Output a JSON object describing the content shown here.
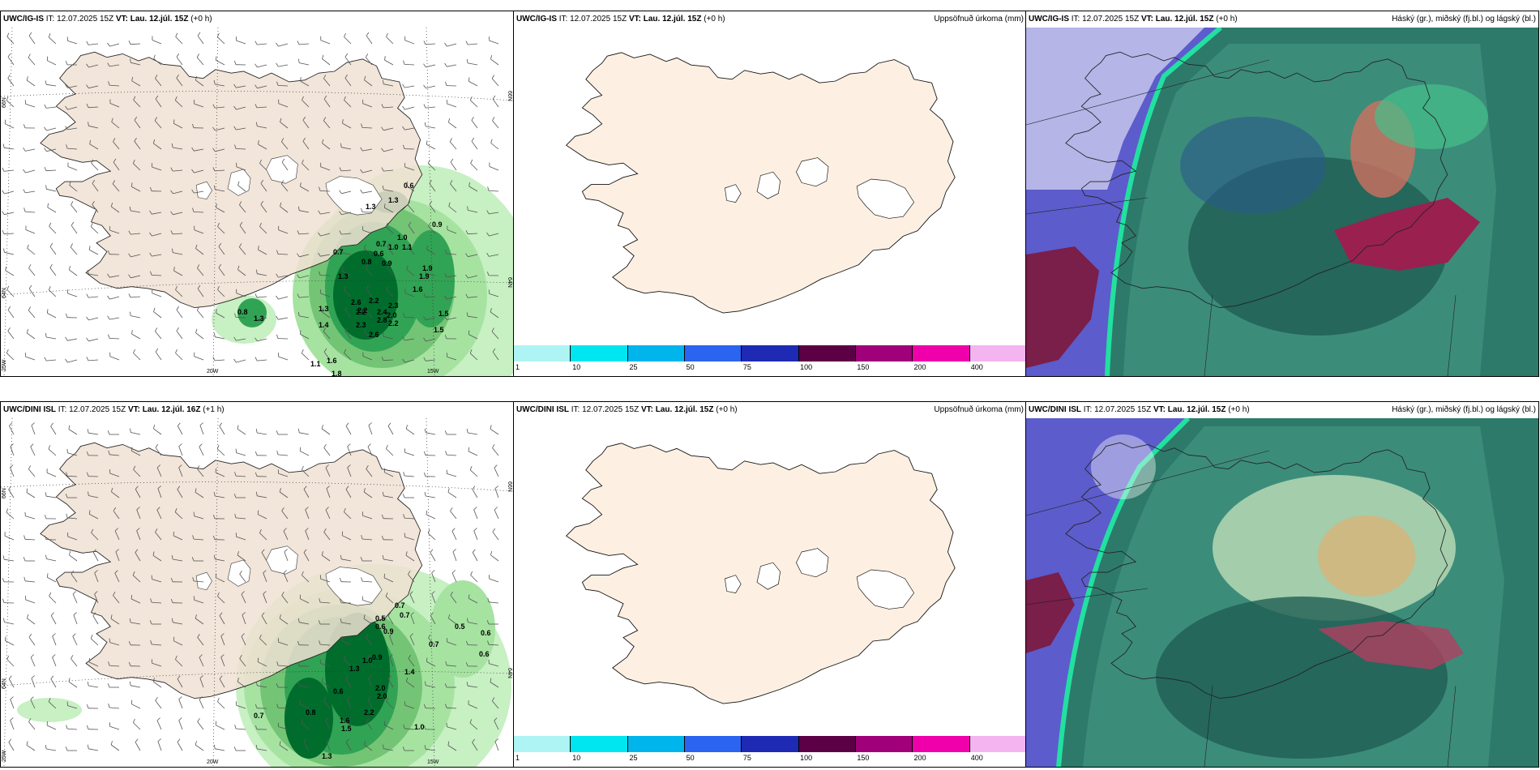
{
  "panels": [
    {
      "model": "UWC/IG-IS",
      "it": "IT: 12.07.2025 15Z",
      "vt": "VT: Lau. 12.júl. 15Z",
      "lead": "(+0 h)",
      "subtitle": ""
    },
    {
      "model": "UWC/IG-IS",
      "it": "IT: 12.07.2025 15Z",
      "vt": "VT: Lau. 12.júl. 15Z",
      "lead": "(+0 h)",
      "subtitle": "Uppsöfnuð úrkoma (mm)"
    },
    {
      "model": "UWC/IG-IS",
      "it": "IT: 12.07.2025 15Z",
      "vt": "VT: Lau. 12.júl. 15Z",
      "lead": "(+0 h)",
      "subtitle": "Háský (gr.), miðský (fj.bl.) og lágský (bl.)"
    },
    {
      "model": "UWC/DINI ISL",
      "it": "IT: 12.07.2025 15Z",
      "vt": "VT: Lau. 12.júl. 16Z",
      "lead": "(+1 h)",
      "subtitle": ""
    },
    {
      "model": "UWC/DINI ISL",
      "it": "IT: 12.07.2025 15Z",
      "vt": "VT: Lau. 12.júl. 15Z",
      "lead": "(+0 h)",
      "subtitle": "Uppsöfnuð úrkoma (mm)"
    },
    {
      "model": "UWC/DINI ISL",
      "it": "IT: 12.07.2025 15Z",
      "vt": "VT: Lau. 12.júl. 15Z",
      "lead": "(+0 h)",
      "subtitle": "Háský (gr.), miðský (fj.bl.) og lágský (bl.)"
    }
  ],
  "axis_labels": {
    "lat66": "66N",
    "lat64": "64N",
    "lon25": "25W",
    "lon20": "20W",
    "lon15": "15W"
  },
  "colorbar": {
    "colors": [
      "#aef4f4",
      "#00e6f0",
      "#00b4ec",
      "#2a64f0",
      "#1e2ab4",
      "#5c0046",
      "#a0007a",
      "#f000aa",
      "#f4b4f0"
    ],
    "labels": [
      "1",
      "10",
      "25",
      "50",
      "75",
      "100",
      "150",
      "200",
      "400"
    ]
  },
  "precip_labels_top": [
    "0.6",
    "1.3",
    "1.3",
    "0.9",
    "0.7",
    "1.0",
    "0.6",
    "0.7",
    "0.8",
    "0.9",
    "1.1",
    "1.0",
    "1.9",
    "1.9",
    "1.6",
    "1.3",
    "2.2",
    "2.2",
    "2.6",
    "2.3",
    "2.2",
    "2.4",
    "2.0",
    "2.2",
    "2.3",
    "2.8",
    "2.6",
    "1.4",
    "1.3",
    "1.5",
    "1.5",
    "1.1",
    "1.6",
    "1.8",
    "0.8",
    "1.3"
  ],
  "precip_labels_bottom": [
    "0.7",
    "0.7",
    "0.5",
    "0.6",
    "0.5",
    "0.6",
    "0.9",
    "0.6",
    "0.7",
    "1.0",
    "0.9",
    "1.4",
    "1.3",
    "0.6",
    "2.0",
    "2.0",
    "0.8",
    "2.2",
    "1.6",
    "1.5",
    "0.7",
    "1.0",
    "1.3"
  ]
}
